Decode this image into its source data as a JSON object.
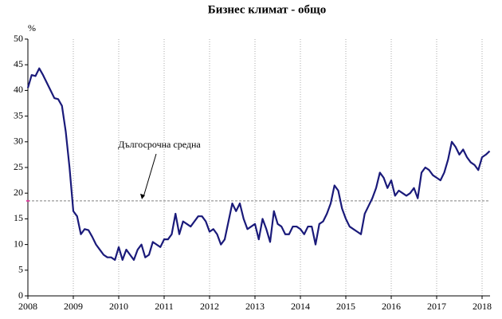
{
  "chart_data": {
    "type": "line",
    "title": "Бизнес климат - общо",
    "y_label": "%",
    "categories": [
      "2008",
      null,
      null,
      null,
      null,
      null,
      null,
      null,
      null,
      null,
      null,
      null,
      "2009",
      null,
      null,
      null,
      null,
      null,
      null,
      null,
      null,
      null,
      null,
      null,
      "2010",
      null,
      null,
      null,
      null,
      null,
      null,
      null,
      null,
      null,
      null,
      null,
      "2011",
      null,
      null,
      null,
      null,
      null,
      null,
      null,
      null,
      null,
      null,
      null,
      "2012",
      null,
      null,
      null,
      null,
      null,
      null,
      null,
      null,
      null,
      null,
      null,
      "2013",
      null,
      null,
      null,
      null,
      null,
      null,
      null,
      null,
      null,
      null,
      null,
      "2014",
      null,
      null,
      null,
      null,
      null,
      null,
      null,
      null,
      null,
      null,
      null,
      "2015",
      null,
      null,
      null,
      null,
      null,
      null,
      null,
      null,
      null,
      null,
      null,
      "2016",
      null,
      null,
      null,
      null,
      null,
      null,
      null,
      null,
      null,
      null,
      null,
      "2017",
      null,
      null,
      null,
      null,
      null,
      null,
      null,
      null,
      null,
      null,
      null,
      "2018",
      null,
      null
    ],
    "series": [
      {
        "name": "Бизнес климат",
        "color": "#1a1a7a",
        "values": [
          40.5,
          43,
          42.8,
          44.3,
          43,
          41.5,
          40,
          38.5,
          38.3,
          37,
          32,
          25,
          16.5,
          15.5,
          12,
          13,
          12.8,
          11.5,
          10,
          9,
          8,
          7.5,
          7.5,
          7,
          9.5,
          7,
          9,
          8,
          7,
          9,
          10,
          7.5,
          8,
          10.5,
          10,
          9.5,
          11,
          11,
          12,
          16,
          12,
          14.5,
          14,
          13.5,
          14.5,
          15.5,
          15.5,
          14.5,
          12.5,
          13,
          12,
          10,
          11,
          14.5,
          18,
          16.5,
          18,
          15,
          13,
          13.5,
          14,
          11,
          15,
          13,
          10.5,
          16.5,
          14,
          13.5,
          12,
          12,
          13.5,
          13.5,
          13,
          12,
          13.5,
          13.5,
          10,
          14,
          14.5,
          16,
          18,
          21.5,
          20.5,
          17,
          15,
          13.5,
          13,
          12.5,
          12,
          16,
          17.5,
          19,
          21,
          24,
          23,
          21,
          22.5,
          19.5,
          20.5,
          20,
          19.5,
          20,
          21,
          19,
          24,
          25,
          24.5,
          23.5,
          23,
          22.5,
          24,
          26.5,
          30,
          29,
          27.5,
          28.5,
          27,
          26,
          25.5,
          24.5,
          27,
          27.5,
          28.2
        ]
      }
    ],
    "average": {
      "label": "Дългосрочна средна",
      "value": 18.5,
      "color": "#808080"
    },
    "ylim": [
      0,
      50
    ],
    "yticks": [
      0,
      5,
      10,
      15,
      20,
      25,
      30,
      35,
      40,
      45,
      50
    ],
    "grid": true
  }
}
